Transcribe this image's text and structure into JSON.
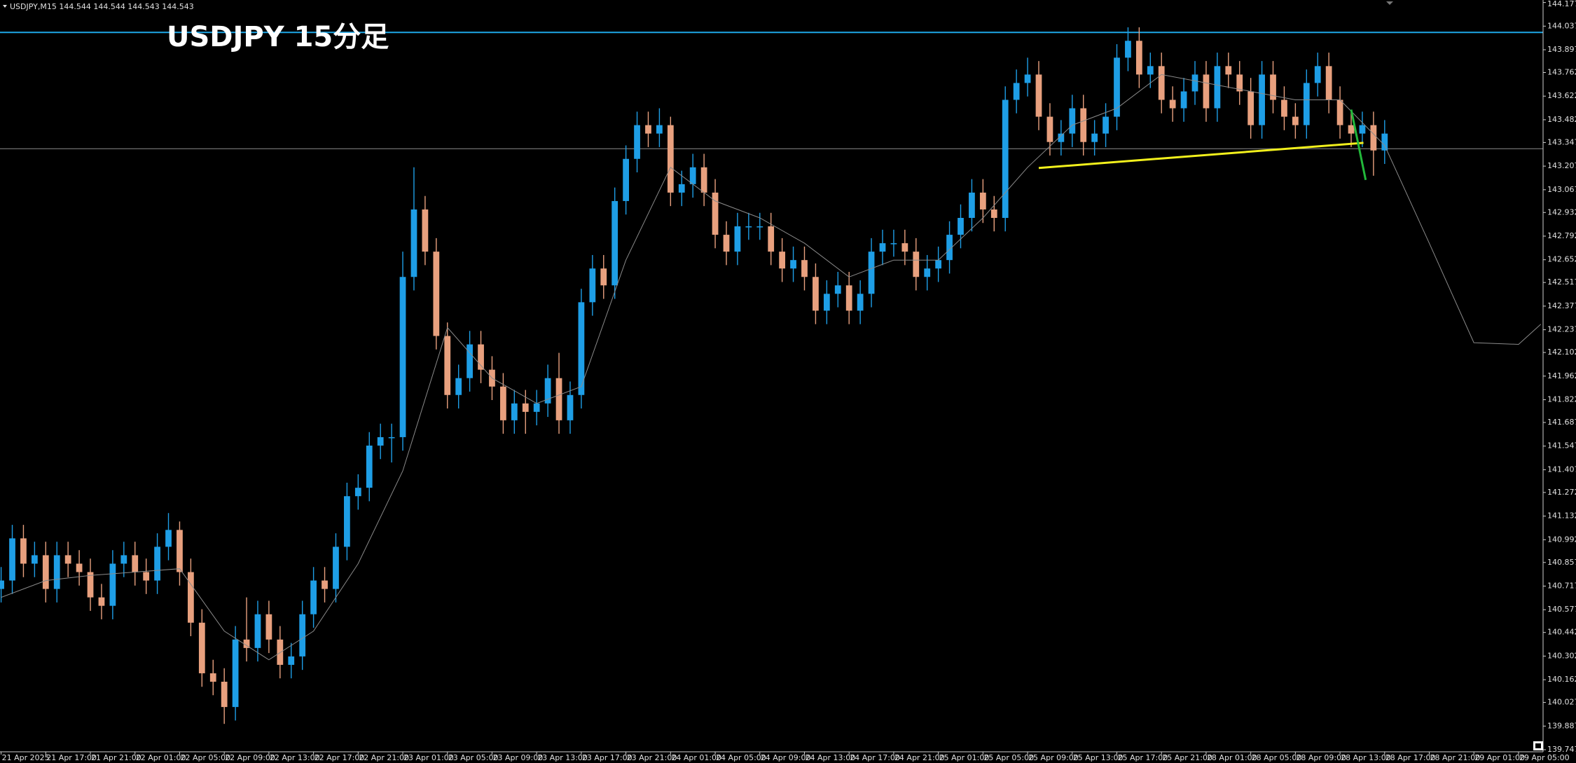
{
  "chart_data": {
    "type": "candlestick",
    "title": "USDJPY  15分足",
    "symbol_info": "USDJPY,M15  144.544 144.544 144.543 144.543",
    "up_color": "#1e9ee6",
    "down_color": "#e8a07e",
    "xlim": [
      -0.1,
      138.2
    ],
    "ylim": [
      139.747,
      144.177
    ],
    "yticks": [
      139.747,
      139.887,
      140.027,
      140.162,
      140.302,
      140.442,
      140.577,
      140.717,
      140.857,
      140.992,
      141.132,
      141.272,
      141.407,
      141.547,
      141.687,
      141.822,
      141.962,
      142.102,
      142.237,
      142.377,
      142.517,
      142.652,
      142.792,
      142.932,
      143.067,
      143.207,
      143.347,
      143.482,
      143.622,
      143.762,
      143.897,
      144.037,
      144.177
    ],
    "xticks": [
      {
        "value": 0,
        "label": "21 Apr 2025"
      },
      {
        "value": 4,
        "label": "21 Apr 17:00"
      },
      {
        "value": 8,
        "label": "21 Apr 21:00"
      },
      {
        "value": 12,
        "label": "22 Apr 01:00"
      },
      {
        "value": 16,
        "label": "22 Apr 05:00"
      },
      {
        "value": 20,
        "label": "22 Apr 09:00"
      },
      {
        "value": 24,
        "label": "22 Apr 13:00"
      },
      {
        "value": 28,
        "label": "22 Apr 17:00"
      },
      {
        "value": 32,
        "label": "22 Apr 21:00"
      },
      {
        "value": 36,
        "label": "23 Apr 01:00"
      },
      {
        "value": 40,
        "label": "23 Apr 05:00"
      },
      {
        "value": 44,
        "label": "23 Apr 09:00"
      },
      {
        "value": 48,
        "label": "23 Apr 13:00"
      },
      {
        "value": 52,
        "label": "23 Apr 17:00"
      },
      {
        "value": 56,
        "label": "23 Apr 21:00"
      },
      {
        "value": 60,
        "label": "24 Apr 01:00"
      },
      {
        "value": 64,
        "label": "24 Apr 05:00"
      },
      {
        "value": 68,
        "label": "24 Apr 09:00"
      },
      {
        "value": 72,
        "label": "24 Apr 13:00"
      },
      {
        "value": 76,
        "label": "24 Apr 17:00"
      },
      {
        "value": 80,
        "label": "24 Apr 21:00"
      },
      {
        "value": 84,
        "label": "25 Apr 01:00"
      },
      {
        "value": 88,
        "label": "25 Apr 05:00"
      },
      {
        "value": 92,
        "label": "25 Apr 09:00"
      },
      {
        "value": 96,
        "label": "25 Apr 13:00"
      },
      {
        "value": 100,
        "label": "25 Apr 17:00"
      },
      {
        "value": 104,
        "label": "25 Apr 21:00"
      },
      {
        "value": 108,
        "label": "28 Apr 01:00"
      },
      {
        "value": 112,
        "label": "28 Apr 05:00"
      },
      {
        "value": 116,
        "label": "28 Apr 09:00"
      },
      {
        "value": 120,
        "label": "28 Apr 13:00"
      },
      {
        "value": 124,
        "label": "28 Apr 17:00"
      },
      {
        "value": 128,
        "label": "28 Apr 21:00"
      },
      {
        "value": 132,
        "label": "29 Apr 01:00"
      },
      {
        "value": 136,
        "label": "29 Apr 05:00"
      }
    ],
    "open": [
      140.7,
      140.75,
      141.0,
      140.85,
      140.9,
      140.7,
      140.9,
      140.85,
      140.8,
      140.65,
      140.6,
      140.85,
      140.9,
      140.8,
      140.75,
      140.95,
      141.05,
      140.8,
      140.5,
      140.2,
      140.15,
      140.0,
      140.4,
      140.35,
      140.55,
      140.4,
      140.25,
      140.3,
      140.55,
      140.75,
      140.7,
      140.95,
      141.25,
      141.3,
      141.55,
      141.6,
      141.6,
      142.55,
      142.95,
      142.7,
      142.2,
      141.85,
      141.95,
      142.15,
      142.0,
      141.9,
      141.7,
      141.8,
      141.75,
      141.8,
      141.95,
      141.7,
      141.85,
      142.4,
      142.6,
      142.5,
      143.0,
      143.25,
      143.45,
      143.4,
      143.45,
      143.05,
      143.1,
      143.2,
      143.05,
      142.8,
      142.7,
      142.85,
      142.85,
      142.85,
      142.7,
      142.6,
      142.65,
      142.55,
      142.35,
      142.45,
      142.5,
      142.35,
      142.45,
      142.7,
      142.75,
      142.75,
      142.7,
      142.55,
      142.6,
      142.65,
      142.8,
      142.9,
      143.05,
      142.95,
      142.9,
      143.6,
      143.7,
      143.75,
      143.5,
      143.35,
      143.4,
      143.55,
      143.35,
      143.4,
      143.5,
      143.85,
      143.95,
      143.75,
      143.8,
      143.6,
      143.55,
      143.65,
      143.75,
      143.55,
      143.8,
      143.75,
      143.65,
      143.45,
      143.75,
      143.6,
      143.5,
      143.45,
      143.7,
      143.8,
      143.6,
      143.45,
      143.4,
      143.45,
      143.3
    ],
    "high": [
      140.83,
      141.08,
      141.08,
      140.98,
      140.98,
      140.98,
      140.98,
      140.93,
      140.88,
      140.73,
      140.93,
      140.98,
      140.98,
      140.88,
      141.03,
      141.15,
      141.1,
      140.88,
      140.58,
      140.28,
      140.23,
      140.48,
      140.65,
      140.63,
      140.63,
      140.48,
      140.38,
      140.63,
      140.83,
      140.83,
      141.03,
      141.33,
      141.38,
      141.63,
      141.68,
      141.68,
      142.7,
      143.2,
      143.03,
      142.78,
      142.28,
      142.03,
      142.23,
      142.23,
      142.08,
      141.98,
      141.88,
      141.88,
      141.88,
      142.03,
      142.1,
      141.93,
      142.48,
      142.68,
      142.68,
      143.08,
      143.33,
      143.53,
      143.53,
      143.55,
      143.5,
      143.18,
      143.28,
      143.28,
      143.13,
      142.88,
      142.93,
      142.93,
      142.93,
      142.93,
      142.78,
      142.73,
      142.73,
      142.63,
      142.53,
      142.58,
      142.58,
      142.53,
      142.78,
      142.83,
      142.83,
      142.83,
      142.78,
      142.68,
      142.73,
      142.88,
      142.98,
      143.13,
      143.13,
      143.03,
      143.68,
      143.78,
      143.85,
      143.83,
      143.58,
      143.48,
      143.63,
      143.63,
      143.48,
      143.58,
      143.93,
      144.03,
      144.03,
      143.88,
      143.88,
      143.68,
      143.73,
      143.83,
      143.83,
      143.88,
      143.88,
      143.83,
      143.73,
      143.83,
      143.83,
      143.68,
      143.58,
      143.78,
      143.88,
      143.88,
      143.68,
      143.53,
      143.53,
      143.53,
      143.48
    ],
    "low": [
      140.62,
      140.67,
      140.77,
      140.77,
      140.62,
      140.62,
      140.77,
      140.72,
      140.57,
      140.52,
      140.52,
      140.77,
      140.72,
      140.67,
      140.67,
      140.87,
      140.72,
      140.42,
      140.12,
      140.07,
      139.9,
      139.92,
      140.27,
      140.27,
      140.32,
      140.17,
      140.17,
      140.22,
      140.47,
      140.62,
      140.62,
      140.87,
      141.17,
      141.22,
      141.47,
      141.45,
      141.52,
      142.47,
      142.62,
      142.12,
      141.77,
      141.77,
      141.87,
      141.92,
      141.82,
      141.62,
      141.62,
      141.62,
      141.67,
      141.72,
      141.62,
      141.62,
      141.77,
      142.32,
      142.42,
      142.42,
      142.92,
      143.17,
      143.32,
      143.32,
      142.97,
      142.97,
      143.02,
      142.97,
      142.72,
      142.62,
      142.62,
      142.77,
      142.77,
      142.62,
      142.52,
      142.52,
      142.47,
      142.27,
      142.27,
      142.37,
      142.27,
      142.27,
      142.37,
      142.62,
      142.67,
      142.62,
      142.47,
      142.47,
      142.52,
      142.57,
      142.72,
      142.82,
      142.87,
      142.82,
      142.82,
      143.52,
      143.62,
      143.42,
      143.27,
      143.27,
      143.32,
      143.27,
      143.27,
      143.32,
      143.42,
      143.77,
      143.67,
      143.67,
      143.52,
      143.47,
      143.47,
      143.57,
      143.47,
      143.47,
      143.67,
      143.57,
      143.37,
      143.37,
      143.52,
      143.42,
      143.37,
      143.37,
      143.62,
      143.52,
      143.37,
      143.32,
      143.32,
      143.15,
      143.22
    ],
    "close": [
      140.75,
      141.0,
      140.85,
      140.9,
      140.7,
      140.9,
      140.85,
      140.8,
      140.65,
      140.6,
      140.85,
      140.9,
      140.8,
      140.75,
      140.95,
      141.05,
      140.8,
      140.5,
      140.2,
      140.15,
      140.0,
      140.4,
      140.35,
      140.55,
      140.4,
      140.25,
      140.3,
      140.55,
      140.75,
      140.7,
      140.95,
      141.25,
      141.3,
      141.55,
      141.6,
      141.6,
      142.55,
      142.95,
      142.7,
      142.2,
      141.85,
      141.95,
      142.15,
      142.0,
      141.9,
      141.7,
      141.8,
      141.75,
      141.8,
      141.95,
      141.7,
      141.85,
      142.4,
      142.6,
      142.5,
      143.0,
      143.25,
      143.45,
      143.4,
      143.45,
      143.05,
      143.1,
      143.2,
      143.05,
      142.8,
      142.7,
      142.85,
      142.85,
      142.85,
      142.7,
      142.6,
      142.65,
      142.55,
      142.35,
      142.45,
      142.5,
      142.35,
      142.45,
      142.7,
      142.75,
      142.75,
      142.7,
      142.55,
      142.6,
      142.65,
      142.8,
      142.9,
      143.05,
      142.95,
      142.9,
      143.6,
      143.7,
      143.75,
      143.5,
      143.35,
      143.4,
      143.55,
      143.35,
      143.4,
      143.5,
      143.85,
      143.95,
      143.75,
      143.8,
      143.6,
      143.55,
      143.65,
      143.75,
      143.55,
      143.8,
      143.75,
      143.65,
      143.45,
      143.75,
      143.6,
      143.5,
      143.45,
      143.7,
      143.8,
      143.6,
      143.45,
      143.4,
      143.45,
      143.3,
      143.4
    ],
    "ma": {
      "color": "#8a8a8a",
      "x": [
        0,
        4,
        8,
        12,
        16,
        20,
        24,
        28,
        32,
        36,
        40,
        44,
        48,
        52,
        56,
        60,
        64,
        68,
        72,
        76,
        80,
        84,
        88,
        92,
        96,
        100,
        104,
        108,
        112,
        116,
        120,
        124,
        128,
        132,
        136,
        138
      ],
      "values": [
        140.65,
        140.75,
        140.78,
        140.8,
        140.82,
        140.45,
        140.28,
        140.45,
        140.85,
        141.4,
        142.25,
        141.95,
        141.8,
        141.9,
        142.65,
        143.2,
        143.0,
        142.9,
        142.75,
        142.55,
        142.65,
        142.65,
        142.9,
        143.2,
        143.45,
        143.55,
        143.75,
        143.7,
        143.65,
        143.6,
        143.6,
        143.33,
        142.75,
        142.16,
        142.15,
        142.27
      ]
    },
    "hlines": [
      {
        "value": 144.0,
        "color": "#1ea8e8"
      },
      {
        "value": 143.31,
        "color": "#8c8c8c"
      }
    ],
    "trendlines": [
      {
        "x1": 93.0,
        "y1": 143.196,
        "x2": 122.1,
        "y2": 143.345,
        "color": "#f2f01c"
      },
      {
        "x1": 121.0,
        "y1": 143.542,
        "x2": 122.3,
        "y2": 143.125,
        "color": "#22b83a"
      }
    ]
  }
}
